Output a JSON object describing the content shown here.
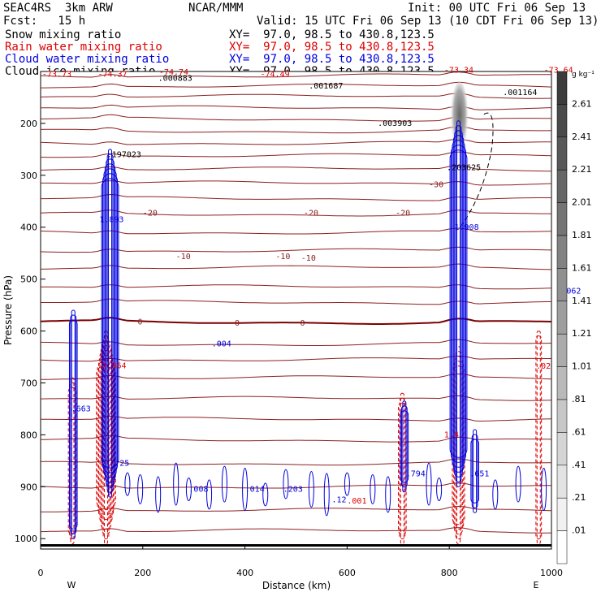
{
  "header": {
    "model": "SEAC4RS  3km ARW",
    "org": "NCAR/MMM",
    "init": "Init: 00 UTC Fri 06 Sep 13",
    "fcst": "Fcst:   15 h",
    "valid": "Valid: 15 UTC Fri 06 Sep 13 (10 CDT Fri 06 Sep 13)"
  },
  "legend": [
    {
      "name": "Snow mixing ratio",
      "xy": "XY=  97.0, 98.5 to 430.8,123.5",
      "color": "#000000"
    },
    {
      "name": "Rain water mixing ratio",
      "xy": "XY=  97.0, 98.5 to 430.8,123.5",
      "color": "#dd0000"
    },
    {
      "name": "Cloud water mixing ratio",
      "xy": "XY=  97.0, 98.5 to 430.8,123.5",
      "color": "#0000dd"
    },
    {
      "name": "Cloud ice mixing ratio",
      "xy": "XY=  97.0, 98.5 to 430.8,123.5",
      "color": "#000000"
    }
  ],
  "colors": {
    "theta_lines": "#8b2020",
    "freezing_line": "#7a0000",
    "rain": "#dd0000",
    "cloud": "#0000dd"
  },
  "chart_data": {
    "type": "line",
    "title": "",
    "xlabel": "Distance (km)",
    "ylabel": "Pressure (hPa)",
    "xlim": [
      0,
      1000
    ],
    "ylim": [
      1020,
      100
    ],
    "x_ticks": [
      0,
      200,
      400,
      600,
      800,
      1000
    ],
    "x_tick_labels": [
      "0",
      "200",
      "400",
      "600",
      "800",
      "1000"
    ],
    "y_ticks": [
      200,
      300,
      400,
      500,
      600,
      700,
      800,
      900,
      1000
    ],
    "y_tick_labels": [
      "200",
      "300",
      "400",
      "500",
      "600",
      "700",
      "800",
      "900",
      "1000"
    ],
    "x_end_labels": {
      "left": "W",
      "right": "E"
    },
    "colorbar": {
      "unit": "g kg⁻¹",
      "labels": [
        "2.61",
        "2.41",
        "2.21",
        "2.01",
        "1.81",
        "1.61",
        "1.41",
        "1.21",
        "1.01",
        ".81",
        ".61",
        ".41",
        ".21",
        ".01"
      ]
    },
    "isotherm_labels": [
      {
        "x": 200,
        "p": 373,
        "text": "-20"
      },
      {
        "x": 515,
        "p": 373,
        "text": "-20"
      },
      {
        "x": 695,
        "p": 373,
        "text": "-20"
      },
      {
        "x": 265,
        "p": 457,
        "text": "-10"
      },
      {
        "x": 460,
        "p": 457,
        "text": "-10"
      },
      {
        "x": 510,
        "p": 460,
        "text": "-10"
      },
      {
        "x": 190,
        "p": 583,
        "text": "0"
      },
      {
        "x": 380,
        "p": 585,
        "text": "0"
      },
      {
        "x": 508,
        "p": 585,
        "text": "0"
      },
      {
        "x": 760,
        "p": 318,
        "text": "-30"
      }
    ],
    "theta_levels_hPa": [
      108,
      128,
      148,
      170,
      192,
      215,
      238,
      262,
      288,
      315,
      345,
      375,
      410,
      445,
      478,
      515,
      545,
      583,
      625,
      655,
      690,
      730,
      770,
      810,
      855,
      900,
      945,
      985
    ],
    "top_value_labels": [
      {
        "x": 3,
        "p": 110,
        "text": "-73.73"
      },
      {
        "x": 112,
        "p": 110,
        "text": "-74.37"
      },
      {
        "x": 232,
        "p": 106,
        "text": "-74.74"
      },
      {
        "x": 430,
        "p": 110,
        "text": "-74.49"
      },
      {
        "x": 985,
        "p": 102,
        "text": "-73.64"
      },
      {
        "x": 790,
        "p": 102,
        "text": "-73.34"
      }
    ],
    "maxima_labels": [
      {
        "x": 230,
        "p": 118,
        "text": ".000883",
        "color": "black"
      },
      {
        "x": 525,
        "p": 133,
        "text": ".001687",
        "color": "black"
      },
      {
        "x": 660,
        "p": 205,
        "text": ".003903",
        "color": "black"
      },
      {
        "x": 905,
        "p": 145,
        "text": ".001164",
        "color": "black"
      },
      {
        "x": 130,
        "p": 265,
        "text": ".197023",
        "color": "black"
      },
      {
        "x": 795,
        "p": 290,
        "text": ".203625",
        "color": "black"
      },
      {
        "x": 115,
        "p": 390,
        "text": "1.893",
        "color": "blue"
      },
      {
        "x": 810,
        "p": 405,
        "text": "1.908",
        "color": "blue"
      },
      {
        "x": 335,
        "p": 630,
        "text": ".004",
        "color": "blue"
      },
      {
        "x": 60,
        "p": 755,
        "text": ".663",
        "color": "blue"
      },
      {
        "x": 120,
        "p": 672,
        "text": "2.364",
        "color": "red"
      },
      {
        "x": 970,
        "p": 673,
        "text": ".02",
        "color": "red"
      },
      {
        "x": 1010,
        "p": 528,
        "text": ".0062",
        "color": "blue"
      },
      {
        "x": 790,
        "p": 805,
        "text": "1.4",
        "color": "red"
      },
      {
        "x": 715,
        "p": 880,
        "text": ".794",
        "color": "blue"
      },
      {
        "x": 840,
        "p": 880,
        "text": ".651",
        "color": "blue"
      },
      {
        "x": 145,
        "p": 860,
        "text": ".25",
        "color": "blue"
      },
      {
        "x": 290,
        "p": 910,
        "text": ".008",
        "color": "blue"
      },
      {
        "x": 400,
        "p": 910,
        "text": ".014",
        "color": "blue"
      },
      {
        "x": 475,
        "p": 910,
        "text": ".203",
        "color": "blue"
      },
      {
        "x": 570,
        "p": 930,
        "text": ".12",
        "color": "blue"
      },
      {
        "x": 600,
        "p": 932,
        "text": ".001",
        "color": "red"
      }
    ],
    "series": [
      {
        "name": "Cloud water mixing ratio",
        "color": "#0000dd",
        "columns": [
          {
            "x": 64,
            "p_top": 560,
            "p_bottom": 1000,
            "max": 0.663
          },
          {
            "x": 136,
            "p_top": 250,
            "p_bottom": 920,
            "max": 1.893
          },
          {
            "x": 712,
            "p_top": 735,
            "p_bottom": 910,
            "max": 0.794
          },
          {
            "x": 818,
            "p_top": 195,
            "p_bottom": 900,
            "max": 1.908
          },
          {
            "x": 850,
            "p_top": 790,
            "p_bottom": 950,
            "max": 0.651
          }
        ]
      },
      {
        "name": "Rain water mixing ratio",
        "color": "#dd0000",
        "columns": [
          {
            "x": 62,
            "p_top": 690,
            "p_bottom": 1010,
            "max": 0.663
          },
          {
            "x": 128,
            "p_top": 600,
            "p_bottom": 1010,
            "max": 2.364
          },
          {
            "x": 708,
            "p_top": 720,
            "p_bottom": 1010,
            "max": 0.794
          },
          {
            "x": 818,
            "p_top": 630,
            "p_bottom": 1010,
            "max": 1.4
          },
          {
            "x": 975,
            "p_top": 600,
            "p_bottom": 1010,
            "max": 0.02
          }
        ]
      },
      {
        "name": "Snow mixing ratio",
        "color": "#000000",
        "columns": [
          {
            "x": 820,
            "p_top": 120,
            "p_bottom": 280,
            "max": 0.203625
          }
        ]
      }
    ]
  }
}
